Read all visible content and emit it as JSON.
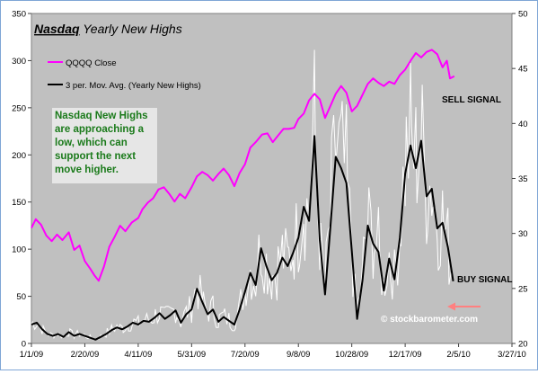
{
  "chart_data": {
    "type": "line",
    "title": {
      "bold": "Nasdaq",
      "rest": "Yearly New Highs"
    },
    "x_tick_labels": [
      "1/1/09",
      "2/20/09",
      "4/11/09",
      "5/31/09",
      "7/20/09",
      "9/8/09",
      "10/28/09",
      "12/17/09",
      "2/5/10",
      "3/27/10"
    ],
    "x_range": [
      "2009-01-01",
      "2010-03-27"
    ],
    "y_left_ticks": [
      0,
      50,
      100,
      150,
      200,
      250,
      300,
      350
    ],
    "y_left_range": [
      0,
      350
    ],
    "y_right_ticks": [
      20,
      25,
      30,
      35,
      40,
      45,
      50
    ],
    "y_right_range": [
      20,
      50
    ],
    "grid": "none",
    "legend_position": "top-left",
    "series": [
      {
        "name": "QQQQ Close",
        "axis": "right",
        "color": "#ff00ff",
        "points": [
          [
            "2009-01-01",
            30.5
          ],
          [
            "2009-01-05",
            31.3
          ],
          [
            "2009-01-10",
            30.8
          ],
          [
            "2009-01-15",
            29.8
          ],
          [
            "2009-01-20",
            29.3
          ],
          [
            "2009-01-25",
            29.9
          ],
          [
            "2009-01-30",
            29.4
          ],
          [
            "2009-02-05",
            30.1
          ],
          [
            "2009-02-10",
            28.5
          ],
          [
            "2009-02-15",
            28.9
          ],
          [
            "2009-02-20",
            27.5
          ],
          [
            "2009-02-25",
            26.8
          ],
          [
            "2009-03-01",
            26.2
          ],
          [
            "2009-03-05",
            25.7
          ],
          [
            "2009-03-10",
            27.0
          ],
          [
            "2009-03-15",
            28.8
          ],
          [
            "2009-03-20",
            29.7
          ],
          [
            "2009-03-25",
            30.7
          ],
          [
            "2009-03-30",
            30.2
          ],
          [
            "2009-04-05",
            31.0
          ],
          [
            "2009-04-11",
            31.4
          ],
          [
            "2009-04-15",
            32.2
          ],
          [
            "2009-04-20",
            32.8
          ],
          [
            "2009-04-25",
            33.2
          ],
          [
            "2009-04-30",
            34.0
          ],
          [
            "2009-05-05",
            34.2
          ],
          [
            "2009-05-10",
            33.6
          ],
          [
            "2009-05-15",
            32.9
          ],
          [
            "2009-05-20",
            33.6
          ],
          [
            "2009-05-25",
            33.2
          ],
          [
            "2009-05-31",
            34.2
          ],
          [
            "2009-06-05",
            35.2
          ],
          [
            "2009-06-10",
            35.6
          ],
          [
            "2009-06-15",
            35.3
          ],
          [
            "2009-06-20",
            34.8
          ],
          [
            "2009-06-25",
            35.4
          ],
          [
            "2009-06-30",
            35.9
          ],
          [
            "2009-07-05",
            35.3
          ],
          [
            "2009-07-10",
            34.3
          ],
          [
            "2009-07-15",
            35.5
          ],
          [
            "2009-07-20",
            36.3
          ],
          [
            "2009-07-25",
            37.8
          ],
          [
            "2009-07-30",
            38.3
          ],
          [
            "2009-08-05",
            39.0
          ],
          [
            "2009-08-10",
            39.1
          ],
          [
            "2009-08-15",
            38.3
          ],
          [
            "2009-08-20",
            38.9
          ],
          [
            "2009-08-25",
            39.5
          ],
          [
            "2009-08-30",
            39.5
          ],
          [
            "2009-09-04",
            39.6
          ],
          [
            "2009-09-08",
            40.4
          ],
          [
            "2009-09-13",
            40.9
          ],
          [
            "2009-09-18",
            42.1
          ],
          [
            "2009-09-23",
            42.7
          ],
          [
            "2009-09-28",
            42.2
          ],
          [
            "2009-10-03",
            40.5
          ],
          [
            "2009-10-08",
            41.6
          ],
          [
            "2009-10-13",
            42.7
          ],
          [
            "2009-10-18",
            43.4
          ],
          [
            "2009-10-23",
            42.8
          ],
          [
            "2009-10-28",
            41.1
          ],
          [
            "2009-11-02",
            41.6
          ],
          [
            "2009-11-07",
            42.6
          ],
          [
            "2009-11-12",
            43.6
          ],
          [
            "2009-11-17",
            44.1
          ],
          [
            "2009-11-22",
            43.7
          ],
          [
            "2009-11-27",
            43.4
          ],
          [
            "2009-12-02",
            43.8
          ],
          [
            "2009-12-07",
            43.6
          ],
          [
            "2009-12-12",
            44.4
          ],
          [
            "2009-12-17",
            44.9
          ],
          [
            "2009-12-22",
            45.7
          ],
          [
            "2009-12-27",
            46.4
          ],
          [
            "2010-01-01",
            46.0
          ],
          [
            "2010-01-06",
            46.5
          ],
          [
            "2010-01-11",
            46.7
          ],
          [
            "2010-01-16",
            46.3
          ],
          [
            "2010-01-21",
            45.1
          ],
          [
            "2010-01-25",
            45.7
          ],
          [
            "2010-01-28",
            44.1
          ],
          [
            "2010-02-01",
            44.3
          ]
        ]
      },
      {
        "name": "3 per. Mov. Avg. (Yearly New Highs)",
        "axis": "left",
        "color": "#000000",
        "points": [
          [
            "2009-01-01",
            20
          ],
          [
            "2009-01-06",
            22
          ],
          [
            "2009-01-11",
            15
          ],
          [
            "2009-01-16",
            10
          ],
          [
            "2009-01-21",
            8
          ],
          [
            "2009-01-26",
            10
          ],
          [
            "2009-01-31",
            7
          ],
          [
            "2009-02-05",
            12
          ],
          [
            "2009-02-10",
            8
          ],
          [
            "2009-02-15",
            10
          ],
          [
            "2009-02-20",
            8
          ],
          [
            "2009-02-25",
            6
          ],
          [
            "2009-03-02",
            4
          ],
          [
            "2009-03-07",
            7
          ],
          [
            "2009-03-12",
            10
          ],
          [
            "2009-03-17",
            14
          ],
          [
            "2009-03-22",
            17
          ],
          [
            "2009-03-27",
            15
          ],
          [
            "2009-04-01",
            18
          ],
          [
            "2009-04-06",
            22
          ],
          [
            "2009-04-11",
            20
          ],
          [
            "2009-04-16",
            24
          ],
          [
            "2009-04-21",
            23
          ],
          [
            "2009-04-26",
            27
          ],
          [
            "2009-05-01",
            32
          ],
          [
            "2009-05-06",
            26
          ],
          [
            "2009-05-11",
            30
          ],
          [
            "2009-05-16",
            35
          ],
          [
            "2009-05-21",
            22
          ],
          [
            "2009-05-26",
            31
          ],
          [
            "2009-05-31",
            36
          ],
          [
            "2009-06-05",
            58
          ],
          [
            "2009-06-10",
            44
          ],
          [
            "2009-06-15",
            31
          ],
          [
            "2009-06-20",
            36
          ],
          [
            "2009-06-25",
            23
          ],
          [
            "2009-06-30",
            28
          ],
          [
            "2009-07-05",
            24
          ],
          [
            "2009-07-10",
            20
          ],
          [
            "2009-07-15",
            36
          ],
          [
            "2009-07-20",
            55
          ],
          [
            "2009-07-25",
            75
          ],
          [
            "2009-07-30",
            62
          ],
          [
            "2009-08-04",
            101
          ],
          [
            "2009-08-09",
            82
          ],
          [
            "2009-08-14",
            67
          ],
          [
            "2009-08-19",
            75
          ],
          [
            "2009-08-24",
            91
          ],
          [
            "2009-08-29",
            82
          ],
          [
            "2009-09-03",
            96
          ],
          [
            "2009-09-08",
            112
          ],
          [
            "2009-09-13",
            145
          ],
          [
            "2009-09-18",
            130
          ],
          [
            "2009-09-23",
            220
          ],
          [
            "2009-09-28",
            110
          ],
          [
            "2009-10-03",
            52
          ],
          [
            "2009-10-08",
            124
          ],
          [
            "2009-10-13",
            198
          ],
          [
            "2009-10-18",
            186
          ],
          [
            "2009-10-23",
            170
          ],
          [
            "2009-10-28",
            98
          ],
          [
            "2009-11-02",
            26
          ],
          [
            "2009-11-07",
            67
          ],
          [
            "2009-11-12",
            125
          ],
          [
            "2009-11-17",
            106
          ],
          [
            "2009-11-22",
            97
          ],
          [
            "2009-11-27",
            56
          ],
          [
            "2009-12-02",
            90
          ],
          [
            "2009-12-07",
            68
          ],
          [
            "2009-12-12",
            112
          ],
          [
            "2009-12-17",
            180
          ],
          [
            "2009-12-22",
            210
          ],
          [
            "2009-12-27",
            186
          ],
          [
            "2010-01-01",
            215
          ],
          [
            "2010-01-06",
            156
          ],
          [
            "2010-01-11",
            164
          ],
          [
            "2010-01-16",
            122
          ],
          [
            "2010-01-21",
            128
          ],
          [
            "2010-01-26",
            102
          ],
          [
            "2010-01-31",
            66
          ]
        ]
      }
    ],
    "annotations": {
      "callout": "Nasdaq New Highs are approaching a low, which can support the next move higher.",
      "sell_signal": "SELL SIGNAL",
      "buy_signal": "BUY SIGNAL",
      "watermark": "© stockbarometer.com"
    }
  }
}
